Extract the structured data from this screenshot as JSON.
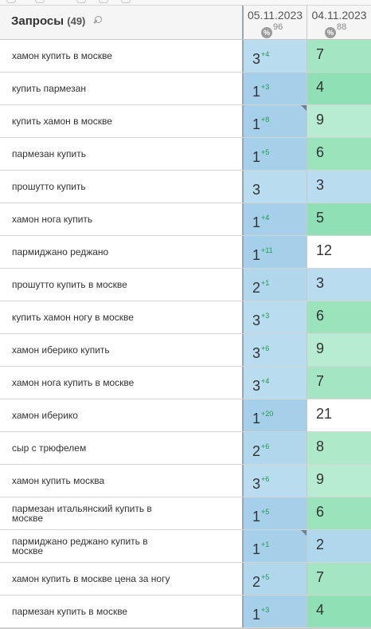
{
  "header": {
    "title": "Запросы",
    "count": "(49)",
    "search_icon": "search-icon",
    "dates": [
      {
        "label": "05.11.2023",
        "percent": "96",
        "percent_icon": "%"
      },
      {
        "label": "04.11.2023",
        "percent": "88",
        "percent_icon": "%"
      }
    ]
  },
  "colors": {
    "cell_blue": "#a6cfe9",
    "cell_light_blue": "#b9dcef",
    "cell_green": "#8fe0b4",
    "cell_light_green": "#b8ecd2",
    "cell_white": "#ffffff",
    "delta_green": "#1f9a4e"
  },
  "rows": [
    {
      "query": "хамон купить в москве",
      "pos1": "3",
      "delta1": "+4",
      "pos2": "7",
      "bg1": "#b9dcef",
      "bg2": "#a4e6c3",
      "marker": false
    },
    {
      "query": "купить пармезан",
      "pos1": "1",
      "delta1": "+3",
      "pos2": "4",
      "bg1": "#a6cfe9",
      "bg2": "#8fe0b4",
      "marker": false
    },
    {
      "query": "купить хамон в москве",
      "pos1": "1",
      "delta1": "+8",
      "pos2": "9",
      "bg1": "#a6cfe9",
      "bg2": "#b8ecd2",
      "marker": true
    },
    {
      "query": "пармезан купить",
      "pos1": "1",
      "delta1": "+5",
      "pos2": "6",
      "bg1": "#a6cfe9",
      "bg2": "#9ae3bb",
      "marker": false
    },
    {
      "query": "прошутто купить",
      "pos1": "3",
      "delta1": "",
      "pos2": "3",
      "bg1": "#b9dcef",
      "bg2": "#b9dcef",
      "marker": false
    },
    {
      "query": "хамон нога купить",
      "pos1": "1",
      "delta1": "+4",
      "pos2": "5",
      "bg1": "#a6cfe9",
      "bg2": "#8fe0b4",
      "marker": false
    },
    {
      "query": "пармиджано реджано",
      "pos1": "1",
      "delta1": "+11",
      "pos2": "12",
      "bg1": "#a6cfe9",
      "bg2": "#ffffff",
      "marker": false
    },
    {
      "query": "прошутто купить в москве",
      "pos1": "2",
      "delta1": "+1",
      "pos2": "3",
      "bg1": "#b1d7ed",
      "bg2": "#b9dcef",
      "marker": false
    },
    {
      "query": "купить хамон ногу в москве",
      "pos1": "3",
      "delta1": "+3",
      "pos2": "6",
      "bg1": "#b9dcef",
      "bg2": "#9ae3bb",
      "marker": false
    },
    {
      "query": "хамон иберико купить",
      "pos1": "3",
      "delta1": "+6",
      "pos2": "9",
      "bg1": "#b9dcef",
      "bg2": "#b8ecd2",
      "marker": false
    },
    {
      "query": "хамон нога купить в москве",
      "pos1": "3",
      "delta1": "+4",
      "pos2": "7",
      "bg1": "#b9dcef",
      "bg2": "#a4e6c3",
      "marker": false
    },
    {
      "query": "хамон иберико",
      "pos1": "1",
      "delta1": "+20",
      "pos2": "21",
      "bg1": "#a6cfe9",
      "bg2": "#ffffff",
      "marker": false
    },
    {
      "query": "сыр с трюфелем",
      "pos1": "2",
      "delta1": "+6",
      "pos2": "8",
      "bg1": "#b1d7ed",
      "bg2": "#aee9ca",
      "marker": false
    },
    {
      "query": "хамон купить москва",
      "pos1": "3",
      "delta1": "+6",
      "pos2": "9",
      "bg1": "#b9dcef",
      "bg2": "#b8ecd2",
      "marker": false
    },
    {
      "query": "пармезан итальянский купить в москве",
      "pos1": "1",
      "delta1": "+5",
      "pos2": "6",
      "bg1": "#a6cfe9",
      "bg2": "#9ae3bb",
      "marker": false
    },
    {
      "query": "пармиджано реджано купить в москве",
      "pos1": "1",
      "delta1": "+1",
      "pos2": "2",
      "bg1": "#a6cfe9",
      "bg2": "#b1d7ed",
      "marker": true
    },
    {
      "query": "хамон купить в москве цена за ногу",
      "pos1": "2",
      "delta1": "+5",
      "pos2": "7",
      "bg1": "#b1d7ed",
      "bg2": "#a4e6c3",
      "marker": false
    },
    {
      "query": "пармезан купить в москве",
      "pos1": "1",
      "delta1": "+3",
      "pos2": "4",
      "bg1": "#a6cfe9",
      "bg2": "#8fe0b4",
      "marker": false
    }
  ]
}
